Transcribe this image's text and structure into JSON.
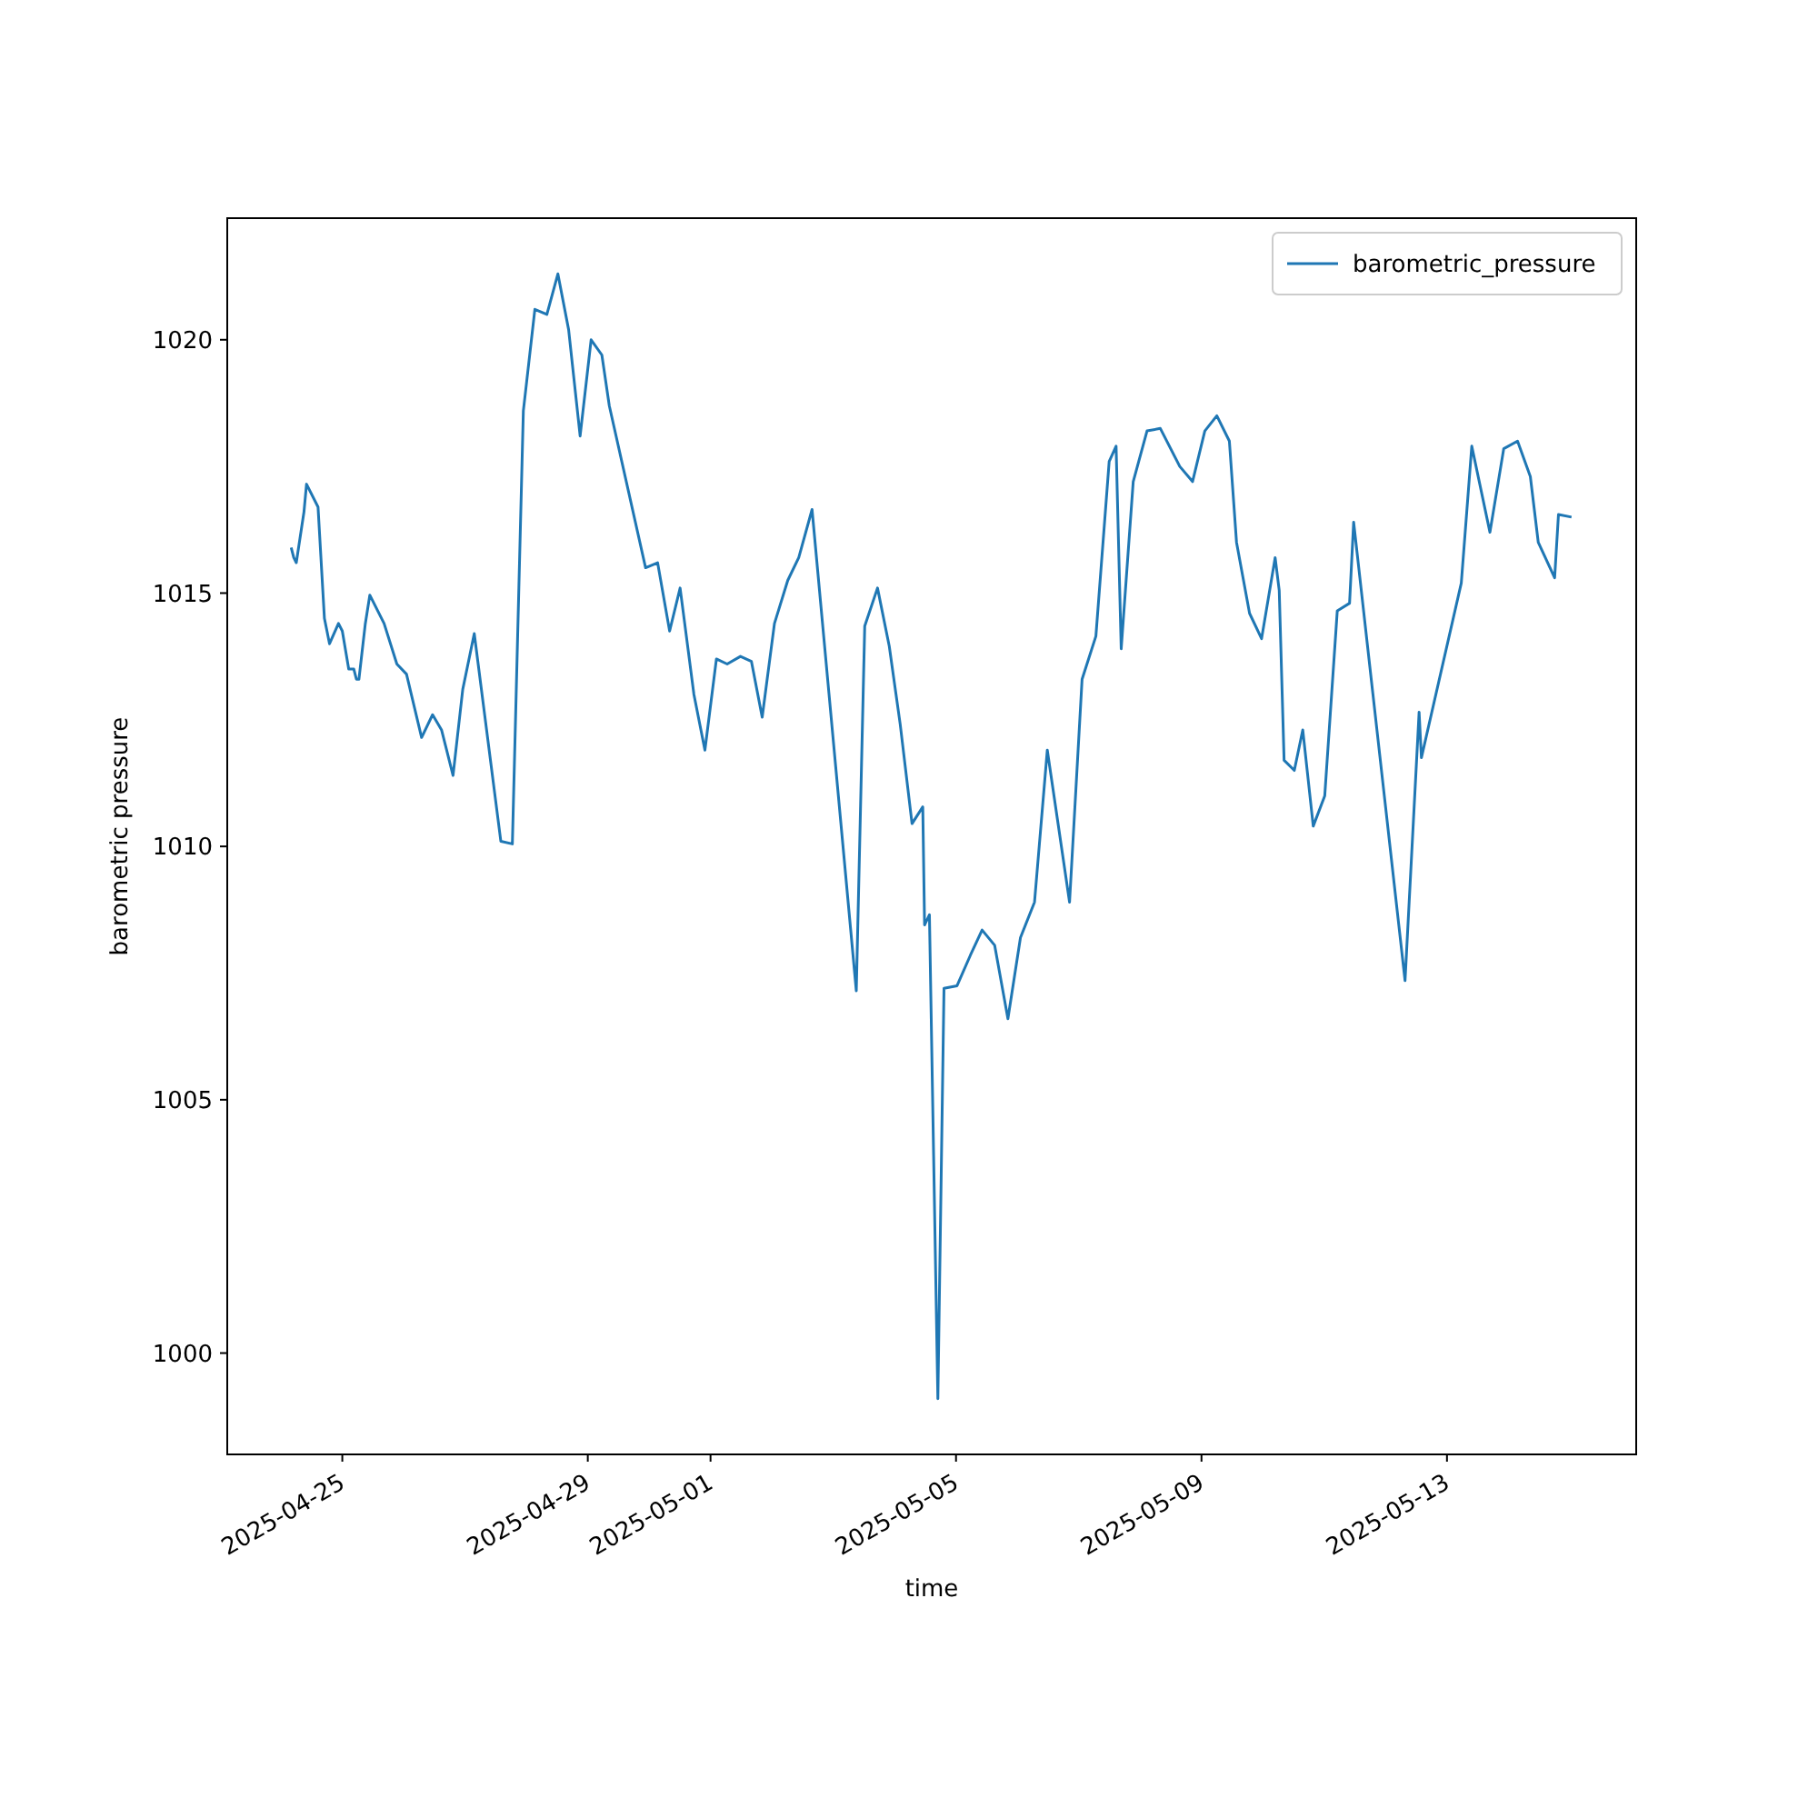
{
  "chart_data": {
    "type": "line",
    "xlabel": "time",
    "ylabel": "barometric pressure",
    "legend": "top right",
    "grid": false,
    "xlim": [
      "2025-04-23T03:00",
      "2025-05-16T02:00"
    ],
    "xticks": [
      "2025-04-25",
      "2025-04-29",
      "2025-05-01",
      "2025-05-05",
      "2025-05-09",
      "2025-05-13"
    ],
    "ylim": [
      998,
      1022.4
    ],
    "yticks": [
      1000,
      1005,
      1010,
      1015,
      1020
    ],
    "series": [
      {
        "name": "barometric_pressure",
        "color": "#1f77b4",
        "x": [
          "2025-04-24T04:00",
          "2025-04-24T05:00",
          "2025-04-24T06:00",
          "2025-04-24T09:00",
          "2025-04-24T10:00",
          "2025-04-24T14:30",
          "2025-04-24T17:00",
          "2025-04-24T19:00",
          "2025-04-24T22:30",
          "2025-04-25T00:00",
          "2025-04-25T02:30",
          "2025-04-25T04:30",
          "2025-04-25T05:30",
          "2025-04-25T06:30",
          "2025-04-25T09:00",
          "2025-04-25T10:45",
          "2025-04-25T16:20",
          "2025-04-25T21:20",
          "2025-04-26T01:06",
          "2025-04-26T07:00",
          "2025-04-26T11:18",
          "2025-04-26T14:48",
          "2025-04-26T19:18",
          "2025-04-26T23:06",
          "2025-04-27T03:36",
          "2025-04-27T14:00",
          "2025-04-27T18:30",
          "2025-04-27T22:48",
          "2025-04-28T03:18",
          "2025-04-28T08:00",
          "2025-04-28T12:18",
          "2025-04-28T16:30",
          "2025-04-28T21:00",
          "2025-04-29T01:18",
          "2025-04-29T05:30",
          "2025-04-29T08:24",
          "2025-04-29T22:36",
          "2025-04-30T03:18",
          "2025-04-30T08:00",
          "2025-04-30T12:06",
          "2025-04-30T17:30",
          "2025-04-30T21:48",
          "2025-05-01T02:18",
          "2025-05-01T06:30",
          "2025-05-01T11:42",
          "2025-05-01T16:00",
          "2025-05-01T20:12",
          "2025-05-02T01:00",
          "2025-05-02T06:12",
          "2025-05-02T10:30",
          "2025-05-02T15:42",
          "2025-05-03T09:00",
          "2025-05-03T12:18",
          "2025-05-03T17:18",
          "2025-05-03T21:54",
          "2025-05-04T02:12",
          "2025-05-04T06:48",
          "2025-05-04T11:00",
          "2025-05-04T11:42",
          "2025-05-04T13:36",
          "2025-05-04T16:54",
          "2025-05-04T19:18",
          "2025-05-05T00:24",
          "2025-05-05T05:36",
          "2025-05-05T10:12",
          "2025-05-05T15:06",
          "2025-05-05T20:18",
          "2025-05-06T01:12",
          "2025-05-06T06:42",
          "2025-05-06T11:42",
          "2025-05-06T20:24",
          "2025-05-07T01:18",
          "2025-05-07T06:42",
          "2025-05-07T11:54",
          "2025-05-07T14:36",
          "2025-05-07T16:36",
          "2025-05-07T21:18",
          "2025-05-08T02:42",
          "2025-05-08T07:54",
          "2025-05-08T15:30",
          "2025-05-08T20:30",
          "2025-05-09T01:18",
          "2025-05-09T06:00",
          "2025-05-09T10:54",
          "2025-05-09T13:42",
          "2025-05-09T18:48",
          "2025-05-09T23:30",
          "2025-05-10T04:48",
          "2025-05-10T06:24",
          "2025-05-10T08:18",
          "2025-05-10T12:18",
          "2025-05-10T15:36",
          "2025-05-10T19:42",
          "2025-05-11T00:12",
          "2025-05-11T05:06",
          "2025-05-11T09:54",
          "2025-05-11T11:30",
          "2025-05-12T07:36",
          "2025-05-12T13:06",
          "2025-05-12T14:00",
          "2025-05-13T05:36",
          "2025-05-13T09:42",
          "2025-05-13T16:48",
          "2025-05-13T22:12",
          "2025-05-14T03:36",
          "2025-05-14T08:36",
          "2025-05-14T11:42",
          "2025-05-14T18:06",
          "2025-05-14T19:36",
          "2025-05-15T00:42"
        ],
        "values": [
          1015.9,
          1015.7,
          1015.6,
          1016.6,
          1017.15,
          1016.7,
          1014.5,
          1014.0,
          1014.4,
          1014.25,
          1013.5,
          1013.5,
          1013.3,
          1013.3,
          1014.4,
          1014.96,
          1014.4,
          1013.6,
          1013.4,
          1012.15,
          1012.6,
          1012.3,
          1011.4,
          1013.1,
          1014.2,
          1010.1,
          1010.05,
          1018.6,
          1020.6,
          1020.5,
          1021.3,
          1020.2,
          1018.1,
          1020.0,
          1019.7,
          1018.7,
          1015.5,
          1015.6,
          1014.25,
          1015.1,
          1013.0,
          1011.9,
          1013.7,
          1013.6,
          1013.75,
          1013.65,
          1012.55,
          1014.4,
          1015.25,
          1015.7,
          1016.65,
          1007.15,
          1014.35,
          1015.1,
          1013.95,
          1012.4,
          1010.45,
          1010.78,
          1008.45,
          1008.65,
          999.1,
          1007.2,
          1007.25,
          1007.85,
          1008.35,
          1008.05,
          1006.6,
          1008.2,
          1008.9,
          1011.9,
          1008.9,
          1013.3,
          1014.15,
          1017.6,
          1017.9,
          1013.9,
          1017.2,
          1018.2,
          1018.25,
          1017.5,
          1017.2,
          1018.2,
          1018.5,
          1018.0,
          1016.0,
          1014.6,
          1014.1,
          1015.7,
          1015.05,
          1011.7,
          1011.5,
          1012.3,
          1010.4,
          1011.0,
          1014.65,
          1014.8,
          1016.4,
          1007.35,
          1012.65,
          1011.75,
          1015.2,
          1017.9,
          1016.2,
          1017.85,
          1018.0,
          1017.3,
          1016.0,
          1015.3,
          1016.55,
          1016.5
        ]
      }
    ]
  }
}
